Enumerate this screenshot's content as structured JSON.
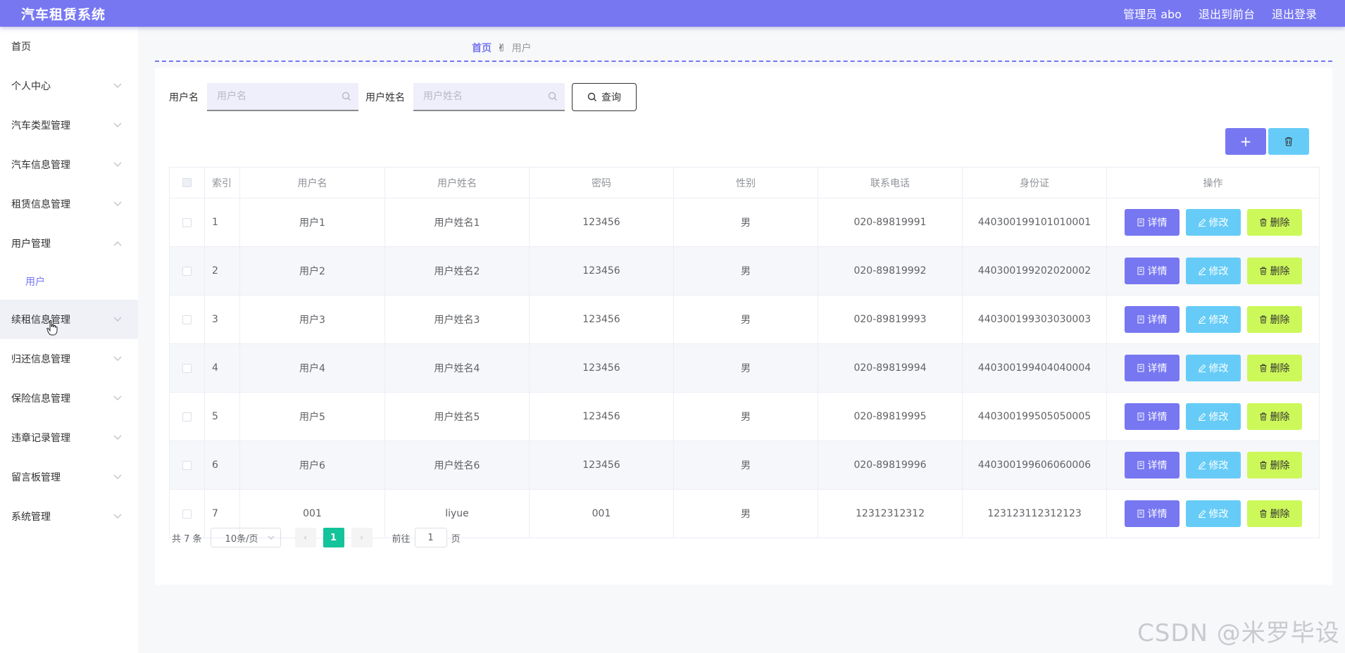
{
  "header": {
    "app_title": "汽车租赁系统",
    "admin_label": "管理员 abo",
    "to_front": "退出到前台",
    "logout": "退出登录"
  },
  "sidebar": {
    "items": [
      {
        "label": "首页"
      },
      {
        "label": "个人中心"
      },
      {
        "label": "汽车类型管理"
      },
      {
        "label": "汽车信息管理"
      },
      {
        "label": "租赁信息管理"
      },
      {
        "label": "用户管理"
      },
      {
        "label": "用户"
      },
      {
        "label": "续租信息管理"
      },
      {
        "label": "归还信息管理"
      },
      {
        "label": "保险信息管理"
      },
      {
        "label": "违章记录管理"
      },
      {
        "label": "留言板管理"
      },
      {
        "label": "系统管理"
      }
    ]
  },
  "breadcrumb": {
    "home": "首页",
    "separator": "✌",
    "current": "用户"
  },
  "search": {
    "username_label": "用户名",
    "username_placeholder": "用户名",
    "realname_label": "用户姓名",
    "realname_placeholder": "用户姓名",
    "query_label": "查询"
  },
  "toolbar": {
    "add_symbol": "+"
  },
  "table": {
    "headers": [
      "索引",
      "用户名",
      "用户姓名",
      "密码",
      "性别",
      "联系电话",
      "身份证",
      "操作"
    ],
    "rows": [
      {
        "index": "1",
        "username": "用户1",
        "realname": "用户姓名1",
        "password": "123456",
        "gender": "男",
        "phone": "020-89819991",
        "idcard": "440300199101010001"
      },
      {
        "index": "2",
        "username": "用户2",
        "realname": "用户姓名2",
        "password": "123456",
        "gender": "男",
        "phone": "020-89819992",
        "idcard": "440300199202020002"
      },
      {
        "index": "3",
        "username": "用户3",
        "realname": "用户姓名3",
        "password": "123456",
        "gender": "男",
        "phone": "020-89819993",
        "idcard": "440300199303030003"
      },
      {
        "index": "4",
        "username": "用户4",
        "realname": "用户姓名4",
        "password": "123456",
        "gender": "男",
        "phone": "020-89819994",
        "idcard": "440300199404040004"
      },
      {
        "index": "5",
        "username": "用户5",
        "realname": "用户姓名5",
        "password": "123456",
        "gender": "男",
        "phone": "020-89819995",
        "idcard": "440300199505050005"
      },
      {
        "index": "6",
        "username": "用户6",
        "realname": "用户姓名6",
        "password": "123456",
        "gender": "男",
        "phone": "020-89819996",
        "idcard": "440300199606060006"
      },
      {
        "index": "7",
        "username": "001",
        "realname": "liyue",
        "password": "001",
        "gender": "男",
        "phone": "12312312312",
        "idcard": "123123112312123"
      }
    ],
    "actions": {
      "detail": "详情",
      "edit": "修改",
      "delete": "删除"
    }
  },
  "pagination": {
    "total": "共 7 条",
    "page_size": "10条/页",
    "prev": "‹",
    "current": "1",
    "next": "›",
    "goto_prefix": "前往",
    "goto_value": "1",
    "goto_suffix": "页"
  },
  "watermark": "CSDN @米罗毕设",
  "colors": {
    "primary": "#7777f2",
    "info": "#66ccf7",
    "lime": "#cdf85a",
    "page_active": "#13c39a"
  }
}
